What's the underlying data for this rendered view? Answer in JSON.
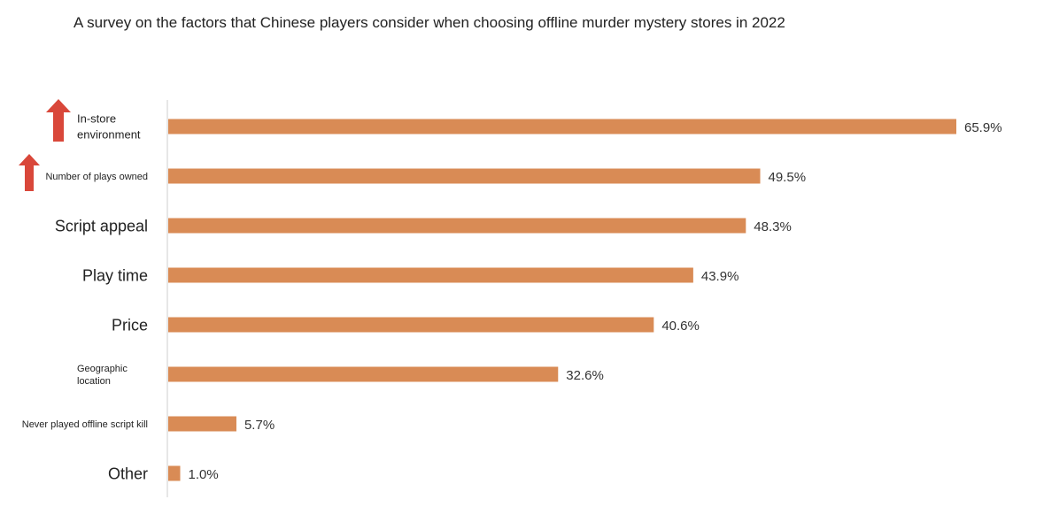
{
  "title": "A survey on the factors that Chinese players consider when choosing offline murder mystery stores in 2022",
  "chart_data": {
    "type": "bar",
    "orientation": "horizontal",
    "title": "A survey on the factors that Chinese players consider when choosing offline murder mystery stores in 2022",
    "xlabel": "",
    "ylabel": "",
    "xlim": [
      0,
      65.9
    ],
    "grid": false,
    "bar_color": "#d98b55",
    "arrow_color": "#d9473a",
    "categories": [
      {
        "lines": [
          "In-store",
          "environment"
        ],
        "size": "small",
        "arrow": "up-arrow-icon"
      },
      {
        "lines": [
          "Number of plays owned"
        ],
        "size": "xsmall",
        "arrow": "up-arrow-icon"
      },
      {
        "lines": [
          "Script appeal"
        ],
        "size": "large"
      },
      {
        "lines": [
          "Play time"
        ],
        "size": "large"
      },
      {
        "lines": [
          "Price"
        ],
        "size": "large"
      },
      {
        "lines": [
          "Geographic",
          "location"
        ],
        "size": "xsmall"
      },
      {
        "lines": [
          "Never played offline script kill"
        ],
        "size": "xsmall"
      },
      {
        "lines": [
          "Other"
        ],
        "size": "large"
      }
    ],
    "values": [
      65.9,
      49.5,
      48.3,
      43.9,
      40.6,
      32.6,
      5.7,
      1.0
    ],
    "value_labels": [
      "65.9%",
      "49.5%",
      "48.3%",
      "43.9%",
      "40.6%",
      "32.6%",
      "5.7%",
      "1.0%"
    ]
  }
}
